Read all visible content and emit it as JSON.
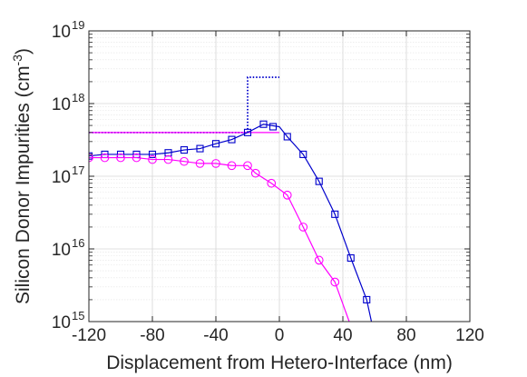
{
  "chart_data": {
    "type": "line",
    "xlabel": "Displacement from Hetero-Interface (nm)",
    "ylabel": {
      "main": "Silicon Donor Impurities (cm",
      "sup": "-3",
      "close": ")"
    },
    "xlim": [
      -120,
      120
    ],
    "ylim": [
      1000000000000000.0,
      1e+19
    ],
    "yscale": "log",
    "xticks": [
      -120,
      -80,
      -40,
      0,
      40,
      80,
      120
    ],
    "xtick_labels": [
      "-120",
      "-80",
      "-40",
      "0",
      "40",
      "80",
      "120"
    ],
    "yticks": [
      1000000000000000.0,
      1e+16,
      1e+17,
      1e+18,
      1e+19
    ],
    "ytick_labels": [
      {
        "base": "10",
        "exp": "15"
      },
      {
        "base": "10",
        "exp": "16"
      },
      {
        "base": "10",
        "exp": "17"
      },
      {
        "base": "10",
        "exp": "18"
      },
      {
        "base": "10",
        "exp": "19"
      }
    ],
    "grid": true,
    "minor_grid": true,
    "series": [
      {
        "color": "#0000cc",
        "style": "dotted",
        "marker": "none",
        "x": [
          -120,
          -20,
          -20,
          0
        ],
        "y": [
          4e+17,
          4e+17,
          2.3e+18,
          2.3e+18
        ]
      },
      {
        "color": "#ff00ff",
        "style": "solid",
        "marker": "none",
        "x": [
          -120,
          0
        ],
        "y": [
          4e+17,
          4e+17
        ]
      },
      {
        "color": "#0000cc",
        "style": "solid",
        "marker": "square",
        "x": [
          -120,
          -110,
          -100,
          -90,
          -80,
          -70,
          -60,
          -50,
          -40,
          -30,
          -20,
          -10,
          0,
          5,
          15,
          25,
          35,
          45,
          55
        ],
        "y": [
          1.9e+17,
          2e+17,
          2e+17,
          2e+17,
          2e+17,
          2.1e+17,
          2.3e+17,
          2.4e+17,
          2.8e+17,
          3.2e+17,
          4e+17,
          5.2e+17,
          4.8e+17,
          3.5e+17,
          2e+17,
          8.5e+16,
          3e+16,
          7500000000000000.0,
          2000000000000000.0
        ],
        "marker_x": [
          -120,
          -110,
          -100,
          -90,
          -80,
          -70,
          -60,
          -50,
          -40,
          -30,
          -20,
          -10,
          -4,
          5,
          15,
          25,
          35,
          45,
          55
        ],
        "marker_y": [
          1.9e+17,
          2e+17,
          2e+17,
          2e+17,
          2e+17,
          2.1e+17,
          2.3e+17,
          2.4e+17,
          2.8e+17,
          3.2e+17,
          4e+17,
          5.2e+17,
          4.8e+17,
          3.5e+17,
          2e+17,
          8.5e+16,
          3e+16,
          7500000000000000.0,
          2000000000000000.0
        ],
        "extend_to": [
          58,
          1000000000000000.0
        ]
      },
      {
        "color": "#ff00ff",
        "style": "solid",
        "marker": "circle",
        "x": [
          -120,
          -110,
          -100,
          -90,
          -80,
          -70,
          -60,
          -50,
          -40,
          -30,
          -20,
          -15,
          -5,
          5,
          15,
          25,
          35
        ],
        "y": [
          1.8e+17,
          1.8e+17,
          1.8e+17,
          1.8e+17,
          1.7e+17,
          1.7e+17,
          1.6e+17,
          1.5e+17,
          1.5e+17,
          1.4e+17,
          1.4e+17,
          1.1e+17,
          8e+16,
          5.5e+16,
          2e+16,
          7000000000000000.0,
          3500000000000000.0
        ],
        "extend_to": [
          44,
          1000000000000000.0
        ]
      }
    ]
  }
}
